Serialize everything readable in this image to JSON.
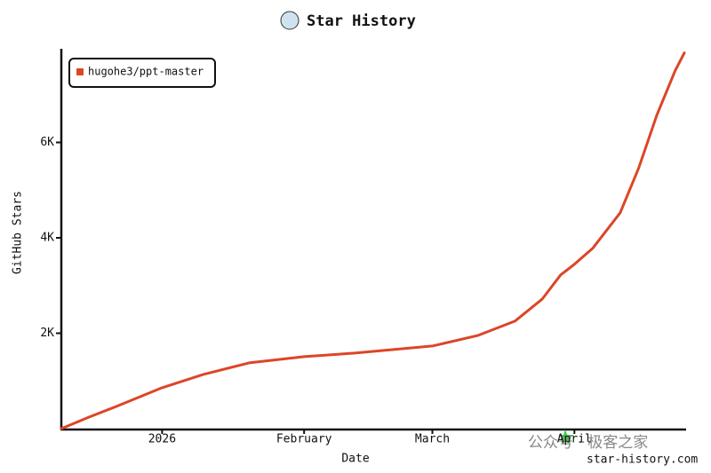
{
  "chart_data": {
    "type": "line",
    "title": "Star History",
    "x_label": "Date",
    "y_label": "GitHub Stars",
    "x": [
      "2025-12-10",
      "2025-12-16",
      "2025-12-22",
      "2026-01-01",
      "2026-01-10",
      "2026-01-20",
      "2026-02-01",
      "2026-02-12",
      "2026-03-01",
      "2026-03-11",
      "2026-03-19",
      "2026-03-25",
      "2026-03-29",
      "2026-04-01",
      "2026-04-05",
      "2026-04-11",
      "2026-04-15",
      "2026-04-19",
      "2026-04-23",
      "2026-04-25"
    ],
    "series": [
      {
        "name": "hugohe3/ppt-master",
        "color": "#dd4528",
        "values": [
          0,
          240,
          465,
          857,
          1136,
          1378,
          1508,
          1583,
          1732,
          1955,
          2253,
          2719,
          3222,
          3445,
          3780,
          4525,
          5456,
          6574,
          7505,
          7877
        ]
      }
    ],
    "xlim": [
      "2025-12-10",
      "2026-04-25"
    ],
    "xticks": [
      {
        "value": "2026-01-01",
        "label": "2026"
      },
      {
        "value": "2026-02-01",
        "label": "February"
      },
      {
        "value": "2026-03-01",
        "label": "March"
      },
      {
        "value": "2026-04-01",
        "label": "April"
      }
    ],
    "ylim": [
      0,
      8000
    ],
    "yticks": [
      {
        "value": 2000,
        "label": "2K"
      },
      {
        "value": 4000,
        "label": "4K"
      },
      {
        "value": 6000,
        "label": "6K"
      }
    ],
    "legend": "top-left",
    "watermark": "公众号 · 极客之家",
    "credit": "star-history.com"
  }
}
